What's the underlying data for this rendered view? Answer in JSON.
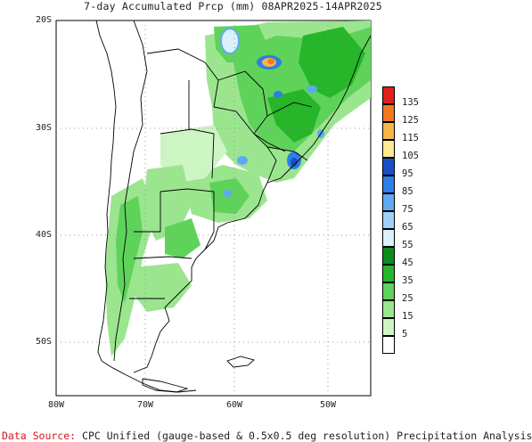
{
  "title": "7-day Accumulated Prcp (mm) 08APR2025-14APR2025",
  "axes": {
    "lat_labels": [
      "20S",
      "30S",
      "40S",
      "50S"
    ],
    "lon_labels": [
      "80W",
      "70W",
      "60W",
      "50W"
    ],
    "grid": "dotted"
  },
  "legend": {
    "levels": [
      {
        "label": "135",
        "color": "#e0201a"
      },
      {
        "label": "125",
        "color": "#f5781e"
      },
      {
        "label": "115",
        "color": "#f6b64a"
      },
      {
        "label": "105",
        "color": "#fde98f"
      },
      {
        "label": "95",
        "color": "#1a4fc4"
      },
      {
        "label": "85",
        "color": "#2d7ee6"
      },
      {
        "label": "75",
        "color": "#5fa9f2"
      },
      {
        "label": "65",
        "color": "#9fd0f7"
      },
      {
        "label": "55",
        "color": "#d9f1fb"
      },
      {
        "label": "45",
        "color": "#0f8a1e"
      },
      {
        "label": "35",
        "color": "#27b52a"
      },
      {
        "label": "25",
        "color": "#5fd25a"
      },
      {
        "label": "15",
        "color": "#9be58f"
      },
      {
        "label": "5",
        "color": "#cdf5c4"
      },
      {
        "label": "",
        "color": "#ffffff"
      }
    ]
  },
  "source": {
    "prefix": "Data Source:",
    "text": "CPC Unified (gauge-based & 0.5x0.5 deg resolution) Precipitation Analysis"
  }
}
